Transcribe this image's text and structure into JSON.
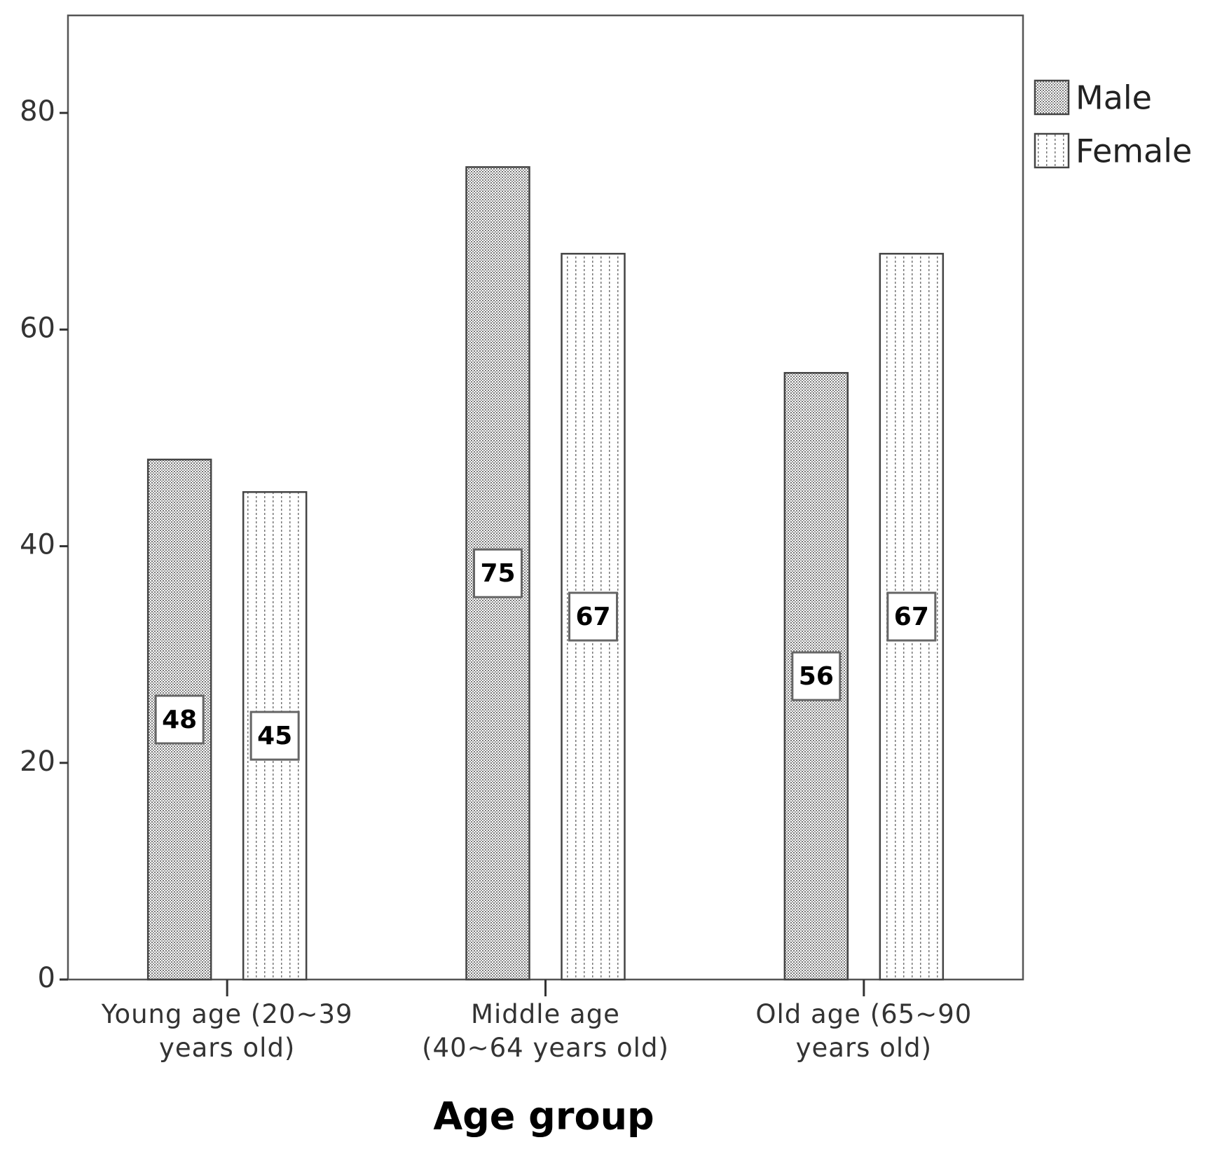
{
  "chart_data": {
    "type": "bar",
    "x_label": "Age group",
    "categories": [
      "Young age (20~39 years old)",
      "Middle age (40~64 years old)",
      "Old age (65~90 years old)"
    ],
    "series": [
      {
        "name": "Male",
        "color": "#ffffff",
        "pattern": "dots",
        "values": [
          48,
          75,
          56
        ]
      },
      {
        "name": "Female",
        "color": "#ffffff",
        "pattern": "dashes",
        "values": [
          45,
          67,
          67
        ]
      }
    ],
    "ylim": [
      0,
      89
    ],
    "yticks": [
      0,
      20,
      40,
      60,
      80
    ],
    "grid": false,
    "legend": "right"
  }
}
